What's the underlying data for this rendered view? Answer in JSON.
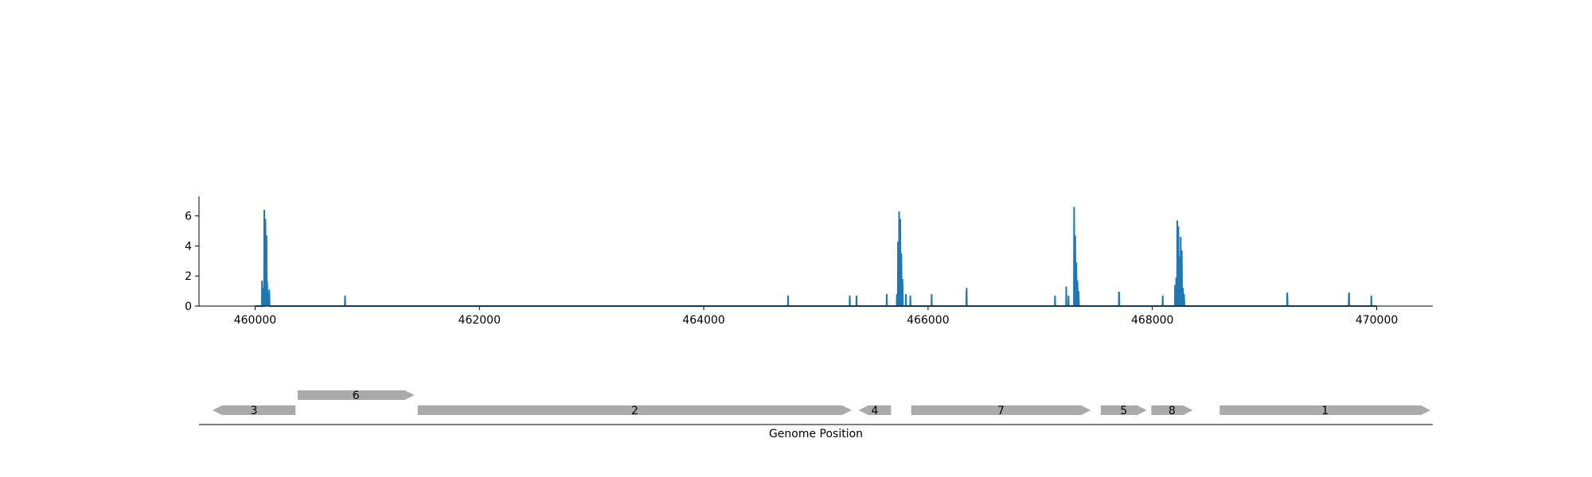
{
  "chart_data": [
    {
      "type": "line",
      "title": "",
      "xlabel": "",
      "ylabel": "",
      "xlim": [
        459500,
        470500
      ],
      "ylim": [
        0,
        7.3
      ],
      "x_ticks": [
        460000,
        462000,
        464000,
        466000,
        468000,
        470000
      ],
      "y_ticks": [
        0,
        2,
        4,
        6
      ],
      "grid": false,
      "legend": "none",
      "line_color": "#1f77b4",
      "series": [
        {
          "x": [
            460000,
            460050,
            460060,
            460062,
            460066,
            460070,
            460072,
            460076,
            460080,
            460082,
            460086,
            460090,
            460092,
            460096,
            460100,
            460102,
            460106,
            460108,
            460112,
            460114,
            460118,
            460120,
            460124,
            460126,
            460130,
            460800,
            460802,
            460804,
            464750,
            464752,
            464754,
            465300,
            465302,
            465304,
            465360,
            465362,
            465364,
            465630,
            465632,
            465634,
            465720,
            465722,
            465726,
            465730,
            465732,
            465736,
            465740,
            465742,
            465746,
            465750,
            465752,
            465756,
            465760,
            465762,
            465766,
            465770,
            465772,
            465776,
            465780,
            465800,
            465802,
            465804,
            465840,
            465842,
            465844,
            466030,
            466032,
            466034,
            466340,
            466342,
            466344,
            466346,
            467130,
            467132,
            467134,
            467230,
            467232,
            467234,
            467250,
            467252,
            467254,
            467300,
            467302,
            467306,
            467310,
            467312,
            467316,
            467320,
            467322,
            467326,
            467330,
            467332,
            467336,
            467340,
            467342,
            467346,
            467700,
            467702,
            467704,
            467706,
            468090,
            468092,
            468094,
            468200,
            468202,
            468206,
            468210,
            468212,
            468216,
            468220,
            468222,
            468226,
            468230,
            468232,
            468236,
            468240,
            468242,
            468246,
            468250,
            468252,
            468256,
            468260,
            468262,
            468266,
            468270,
            468272,
            468276,
            468280,
            468282,
            468286,
            469200,
            469202,
            469204,
            469206,
            469750,
            469752,
            469754,
            469756,
            469950,
            469952,
            469954,
            470000
          ],
          "y": [
            0,
            0,
            0,
            1.7,
            0.6,
            0,
            1.2,
            0,
            0,
            6.4,
            0.5,
            0,
            5.8,
            0.3,
            0,
            4.7,
            0,
            1.6,
            0,
            0.9,
            0,
            0.6,
            0,
            1.1,
            0,
            0,
            0.7,
            0,
            0,
            0.7,
            0,
            0,
            0.7,
            0,
            0,
            0.7,
            0,
            0,
            0.8,
            0,
            0,
            0.8,
            0,
            0,
            4.3,
            0,
            0,
            6.3,
            0,
            0,
            5.8,
            0,
            0,
            3.5,
            0,
            0,
            1.8,
            0,
            0,
            0,
            0.8,
            0,
            0,
            0.7,
            0,
            0,
            0.8,
            0,
            0,
            0.8,
            1.2,
            0,
            0,
            0.7,
            0,
            0,
            1.3,
            0,
            0,
            0.7,
            0,
            0,
            6.6,
            0,
            0,
            4.7,
            0,
            0,
            2.9,
            0,
            0,
            1.7,
            0,
            0,
            1.0,
            0,
            0,
            0.9,
            0.9,
            0,
            0,
            0.7,
            0,
            0,
            1.4,
            0,
            0,
            1.9,
            0,
            0,
            5.7,
            0,
            0,
            5.3,
            0,
            0,
            3.3,
            0,
            0,
            4.6,
            0,
            0,
            3.7,
            0,
            0,
            1.2,
            0,
            0,
            0.8,
            0,
            0,
            0.9,
            0.7,
            0,
            0,
            0.8,
            0.9,
            0,
            0,
            0.7,
            0,
            0
          ]
        }
      ]
    },
    {
      "type": "gene-track",
      "xlabel": "Genome Position",
      "xlim": [
        459500,
        470500
      ],
      "color": "#aaaaaa",
      "genes": [
        {
          "label": "3",
          "start": 459620,
          "end": 460360,
          "strand": "-",
          "row": 0
        },
        {
          "label": "6",
          "start": 460380,
          "end": 461420,
          "strand": "+",
          "row": 1
        },
        {
          "label": "2",
          "start": 461450,
          "end": 465320,
          "strand": "+",
          "row": 0
        },
        {
          "label": "4",
          "start": 465380,
          "end": 465670,
          "strand": "-",
          "row": 0
        },
        {
          "label": "7",
          "start": 465850,
          "end": 467450,
          "strand": "+",
          "row": 0
        },
        {
          "label": "5",
          "start": 467540,
          "end": 467950,
          "strand": "+",
          "row": 0
        },
        {
          "label": "8",
          "start": 467990,
          "end": 468360,
          "strand": "+",
          "row": 0
        },
        {
          "label": "1",
          "start": 468600,
          "end": 470480,
          "strand": "+",
          "row": 0
        }
      ]
    }
  ]
}
